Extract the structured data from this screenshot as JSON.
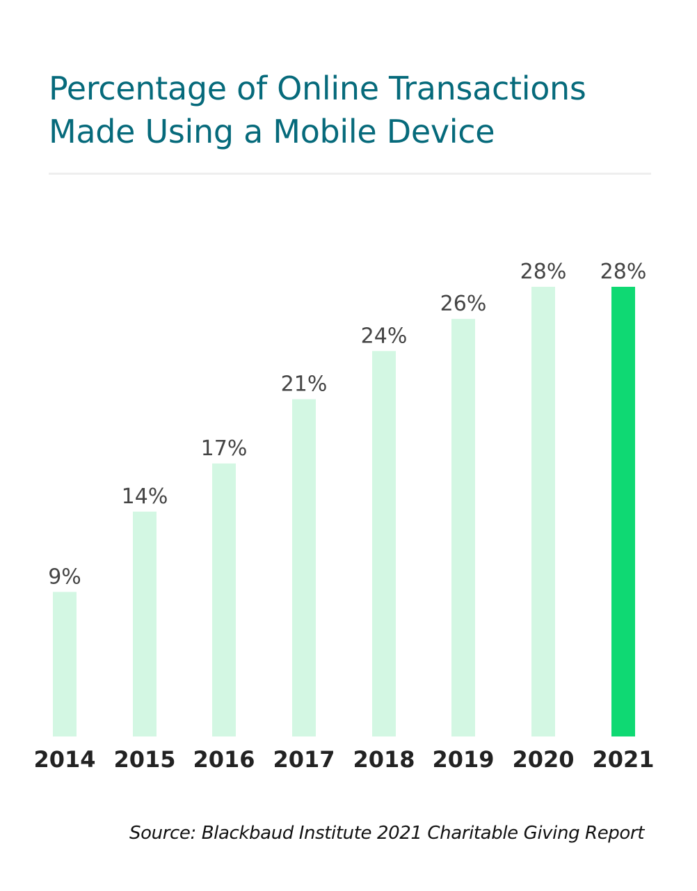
{
  "chart_data": {
    "type": "bar",
    "title": "Percentage of Online Transactions Made Using a Mobile Device",
    "title_lines": [
      "Percentage of Online Transactions",
      "Made Using a Mobile Device"
    ],
    "categories": [
      "2014",
      "2015",
      "2016",
      "2017",
      "2018",
      "2019",
      "2020",
      "2021"
    ],
    "values": [
      9,
      14,
      17,
      21,
      24,
      26,
      28,
      28
    ],
    "value_labels": [
      "9%",
      "14%",
      "17%",
      "21%",
      "24%",
      "26%",
      "28%",
      "28%"
    ],
    "highlight_index": 7,
    "xlabel": "",
    "ylabel": "",
    "ylim": [
      0,
      28
    ],
    "grid": false,
    "source": "Source: Blackbaud Institute 2021 Charitable Giving Report"
  },
  "colors": {
    "title": "#066a7b",
    "bar": "#d3f7e3",
    "bar_highlight": "#0fd973",
    "value_label": "#444444",
    "category_label": "#222222",
    "source": "#111111"
  }
}
